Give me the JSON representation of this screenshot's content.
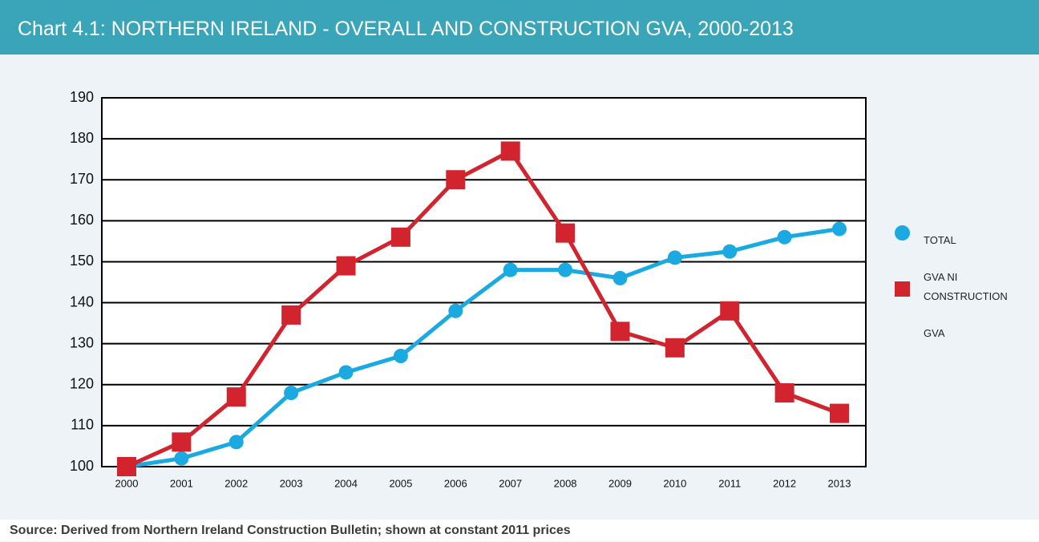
{
  "chart_data": {
    "type": "line",
    "title": "Chart 4.1: NORTHERN IRELAND - OVERALL AND CONSTRUCTION GVA, 2000-2013",
    "source": "Source: Derived from Northern Ireland Construction Bulletin; shown at constant 2011 prices",
    "categories": [
      "2000",
      "2001",
      "2002",
      "2003",
      "2004",
      "2005",
      "2006",
      "2007",
      "2008",
      "2009",
      "2010",
      "2011",
      "2012",
      "2013"
    ],
    "series": [
      {
        "name": "TOTAL\nGVA NI",
        "color": "#1ba9e1",
        "marker": "circle",
        "values": [
          100,
          102,
          106,
          118,
          123,
          127,
          138,
          148,
          148,
          146,
          151,
          152.5,
          156,
          158
        ]
      },
      {
        "name": "CONSTRUCTION\nGVA",
        "color": "#d1242f",
        "marker": "square",
        "values": [
          100,
          106,
          117,
          137,
          149,
          156,
          170,
          177,
          157,
          133,
          129,
          138,
          118,
          113
        ]
      }
    ],
    "ylim": [
      100,
      190
    ],
    "yticks": [
      100,
      110,
      120,
      130,
      140,
      150,
      160,
      170,
      180,
      190
    ],
    "grid": true
  }
}
